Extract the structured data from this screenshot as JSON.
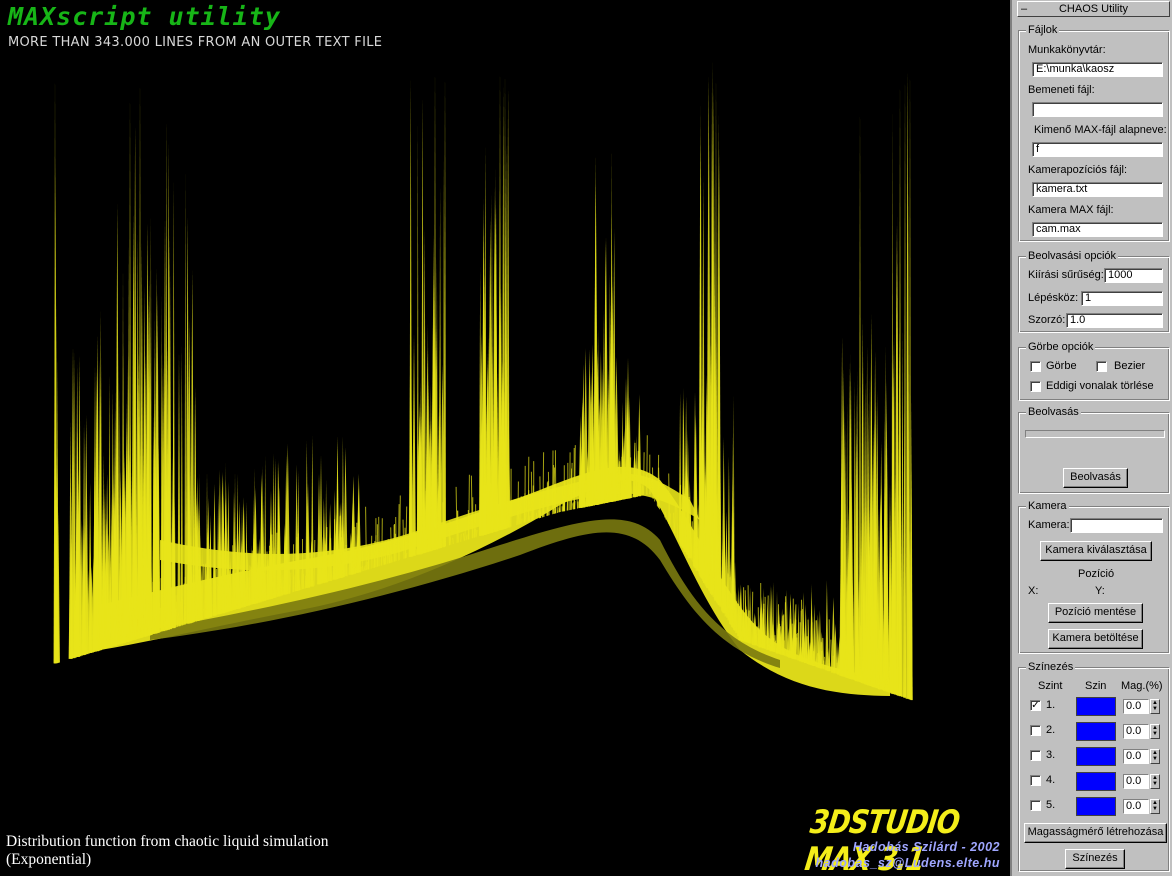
{
  "viewport": {
    "title": "MAXscript utility",
    "subtitle": "MORE THAN 343.000 LINES FROM AN OUTER TEXT FILE",
    "caption_line1": "Distribution function from chaotic liquid simulation",
    "caption_line2": "(Exponential)",
    "logo": "3DSTUDIO MAX 3.1",
    "author": "Hadobás Szilárd - 2002",
    "email": "hadobas_sz@Ludens.elte.hu",
    "colors": {
      "surface": "#e8e41a",
      "surface_shadow": "#7a7a10",
      "title": "#17b517",
      "logo": "#f4ee1a",
      "author": "#9fa6ff"
    }
  },
  "panel": {
    "rollout_toggle": "–",
    "rollout_title": "CHAOS Utility",
    "files": {
      "title": "Fájlok",
      "workdir_label": "Munkakönyvtár:",
      "workdir_value": "E:\\munka\\kaosz",
      "input_label": "Bemeneti fájl:",
      "input_value": "",
      "output_label": "Kimenő MAX-fájl alapneve:",
      "output_value": "f",
      "campos_label": "Kamerapozíciós fájl:",
      "campos_value": "kamera.txt",
      "cammax_label": "Kamera MAX fájl:",
      "cammax_value": "cam.max"
    },
    "read_options": {
      "title": "Beolvasási opciók",
      "density_label": "Kiírási sűrűség:",
      "density_value": "1000",
      "step_label": "Lépésköz:",
      "step_value": "1",
      "mult_label": "Szorzó:",
      "mult_value": "1.0"
    },
    "curve_options": {
      "title": "Görbe opciók",
      "curve_label": "Görbe",
      "curve_checked": false,
      "bezier_label": "Bezier",
      "bezier_checked": false,
      "clear_label": "Eddigi vonalak törlése",
      "clear_checked": false
    },
    "reading": {
      "title": "Beolvasás",
      "progress": 0,
      "button": "Beolvasás"
    },
    "camera": {
      "title": "Kamera",
      "camera_label": "Kamera:",
      "camera_value": "",
      "select_button": "Kamera kiválasztása",
      "position_label": "Pozíció",
      "x_label": "X:",
      "y_label": "Y:",
      "save_button": "Pozíció mentése",
      "load_button": "Kamera betöltése"
    },
    "coloring": {
      "title": "Színezés",
      "col_level": "Szint",
      "col_color": "Szin",
      "col_height": "Mag.(%)",
      "swatch_color": "#0000ff",
      "levels": [
        {
          "label": "1.",
          "checked": true,
          "value": "0.0"
        },
        {
          "label": "2.",
          "checked": false,
          "value": "0.0"
        },
        {
          "label": "3.",
          "checked": false,
          "value": "0.0"
        },
        {
          "label": "4.",
          "checked": false,
          "value": "0.0"
        },
        {
          "label": "5.",
          "checked": false,
          "value": "0.0"
        }
      ],
      "create_button": "Magasságmérő létrehozása",
      "color_button": "Színezés"
    }
  }
}
